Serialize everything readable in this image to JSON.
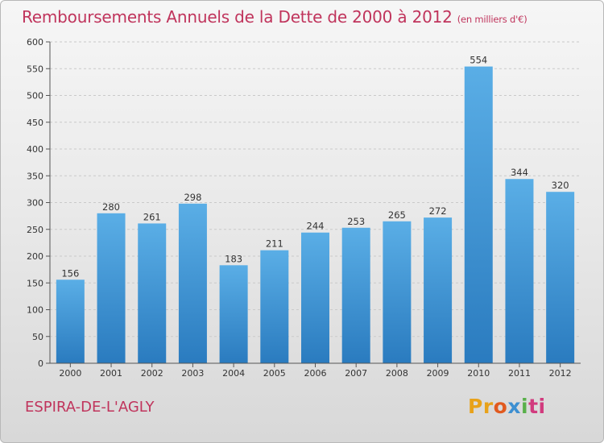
{
  "title": "Remboursements Annuels de la Dette de 2000 à 2012",
  "unit": "(en milliers d'€)",
  "town": "ESPIRA-DE-L'AGLY",
  "logo": [
    "Pr",
    "o",
    "x",
    "i",
    "ti"
  ],
  "colors": {
    "accent": "#c0345c",
    "bar_top": "#5aaee6",
    "bar_bottom": "#2a7bbf"
  },
  "chart_data": {
    "type": "bar",
    "title": "Remboursements Annuels de la Dette de 2000 à 2012",
    "ylabel": "en milliers d'€",
    "categories": [
      "2000",
      "2001",
      "2002",
      "2003",
      "2004",
      "2005",
      "2006",
      "2007",
      "2008",
      "2009",
      "2010",
      "2011",
      "2012"
    ],
    "values": [
      156,
      280,
      261,
      298,
      183,
      211,
      244,
      253,
      265,
      272,
      554,
      344,
      320
    ],
    "ylim": [
      0,
      600
    ],
    "yticks": [
      0,
      50,
      100,
      150,
      200,
      250,
      300,
      350,
      400,
      450,
      500,
      550,
      600
    ],
    "grid": true
  }
}
